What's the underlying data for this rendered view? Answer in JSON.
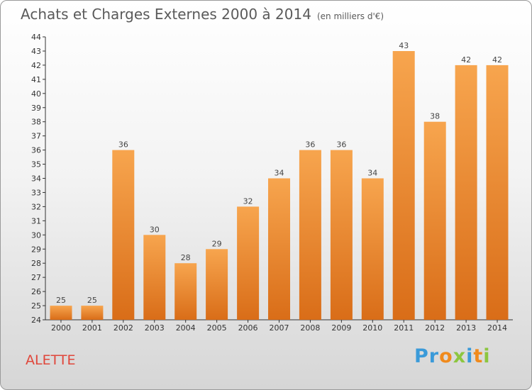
{
  "title": "Achats et Charges Externes 2000 à 2014",
  "subtitle": "(en milliers d'€)",
  "commune": "ALETTE",
  "logo": {
    "letters": [
      "P",
      "r",
      "o",
      "x",
      "i",
      "t",
      "i"
    ],
    "colors": [
      "#3a9ad9",
      "#3a9ad9",
      "#f08a1c",
      "#8cc63f",
      "#3a9ad9",
      "#f08a1c",
      "#8cc63f"
    ]
  },
  "colors": {
    "bar_light": "#f7a54e",
    "bar_dark": "#d96d18",
    "title": "#5a5a5a",
    "commune": "#e0463a"
  },
  "chart_data": {
    "type": "bar",
    "categories": [
      "2000",
      "2001",
      "2002",
      "2003",
      "2004",
      "2005",
      "2006",
      "2007",
      "2008",
      "2009",
      "2010",
      "2011",
      "2012",
      "2013",
      "2014"
    ],
    "values": [
      25,
      25,
      36,
      30,
      28,
      29,
      32,
      34,
      36,
      36,
      34,
      43,
      38,
      42,
      42
    ],
    "title": "Achats et Charges Externes 2000 à 2014",
    "ylim": [
      24,
      44
    ],
    "yticks": [
      24,
      25,
      26,
      27,
      28,
      29,
      30,
      31,
      32,
      33,
      34,
      35,
      36,
      37,
      38,
      39,
      40,
      41,
      42,
      43,
      44
    ],
    "grid": false,
    "legend": "none"
  }
}
